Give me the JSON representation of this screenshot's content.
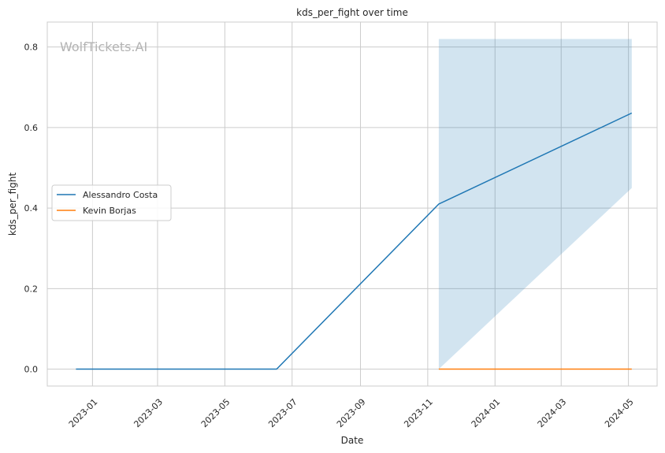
{
  "chart_data": {
    "type": "line",
    "title": "kds_per_fight over time",
    "xlabel": "Date",
    "ylabel": "kds_per_fight",
    "watermark": "WolfTickets.AI",
    "x_ticks": [
      "2023-01",
      "2023-03",
      "2023-05",
      "2023-07",
      "2023-09",
      "2023-11",
      "2024-01",
      "2024-03",
      "2024-05"
    ],
    "y_ticks": [
      "0.0",
      "0.2",
      "0.4",
      "0.6",
      "0.8"
    ],
    "ylim": [
      -0.042,
      0.862
    ],
    "xlim": [
      "2022-11-21",
      "2024-05-27"
    ],
    "grid": true,
    "legend_position": "center-left",
    "series": [
      {
        "name": "Alessandro Costa",
        "color": "#1f77b4",
        "points": [
          {
            "x": "2022-12-17",
            "y": 0.0
          },
          {
            "x": "2023-06-17",
            "y": 0.0
          },
          {
            "x": "2023-11-11",
            "y": 0.41
          },
          {
            "x": "2024-05-04",
            "y": 0.636
          }
        ],
        "band": {
          "x": [
            "2023-11-11",
            "2024-05-04"
          ],
          "lower": [
            0.0,
            0.45
          ],
          "upper": [
            0.82,
            0.82
          ]
        }
      },
      {
        "name": "Kevin Borjas",
        "color": "#ff7f0e",
        "points": [
          {
            "x": "2023-11-11",
            "y": 0.0
          },
          {
            "x": "2024-05-04",
            "y": 0.0
          }
        ]
      }
    ]
  }
}
